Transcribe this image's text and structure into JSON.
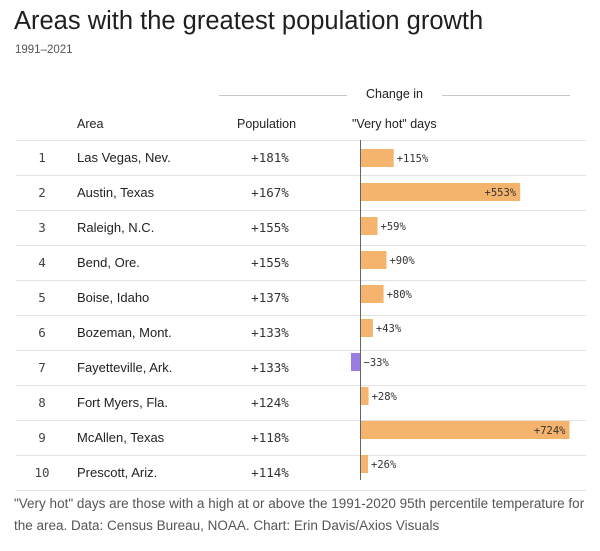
{
  "title": "Areas with the greatest population growth",
  "subtitle": "1991–2021",
  "group_header": "Change in",
  "columns": {
    "area": "Area",
    "population": "Population",
    "very_hot_days": "\"Very hot\" days"
  },
  "rows": [
    {
      "rank": "1",
      "area": "Las Vegas, Nev.",
      "population": "+181%"
    },
    {
      "rank": "2",
      "area": "Austin, Texas",
      "population": "+167%"
    },
    {
      "rank": "3",
      "area": "Raleigh, N.C.",
      "population": "+155%"
    },
    {
      "rank": "4",
      "area": "Bend, Ore.",
      "population": "+155%"
    },
    {
      "rank": "5",
      "area": "Boise, Idaho",
      "population": "+137%"
    },
    {
      "rank": "6",
      "area": "Bozeman, Mont.",
      "population": "+133%"
    },
    {
      "rank": "7",
      "area": "Fayetteville, Ark.",
      "population": "+133%"
    },
    {
      "rank": "8",
      "area": "Fort Myers, Fla.",
      "population": "+124%"
    },
    {
      "rank": "9",
      "area": "McAllen, Texas",
      "population": "+118%"
    },
    {
      "rank": "10",
      "area": "Prescott, Ariz.",
      "population": "+114%"
    }
  ],
  "footnote": "\"Very hot\" days are those with a high at or above the 1991-2020 95th percentile temperature for the area. Data: Census Bureau, NOAA. Chart: Erin Davis/Axios Visuals",
  "colors": {
    "positive": "#f5b46e",
    "negative": "#9a7de0"
  },
  "chart_data": {
    "type": "bar",
    "orientation": "horizontal",
    "title": "Areas with the greatest population growth",
    "subtitle": "1991–2021",
    "xlabel": "Change in \"Very hot\" days",
    "categories": [
      "Las Vegas, Nev.",
      "Austin, Texas",
      "Raleigh, N.C.",
      "Bend, Ore.",
      "Boise, Idaho",
      "Bozeman, Mont.",
      "Fayetteville, Ark.",
      "Fort Myers, Fla.",
      "McAllen, Texas",
      "Prescott, Ariz."
    ],
    "values": [
      115,
      553,
      59,
      90,
      80,
      43,
      -33,
      28,
      724,
      26
    ],
    "labels": [
      "+115%",
      "+553%",
      "+59%",
      "+90%",
      "+80%",
      "+43%",
      "−33%",
      "+28%",
      "+724%",
      "+26%"
    ],
    "xlim": [
      -33,
      724
    ]
  }
}
